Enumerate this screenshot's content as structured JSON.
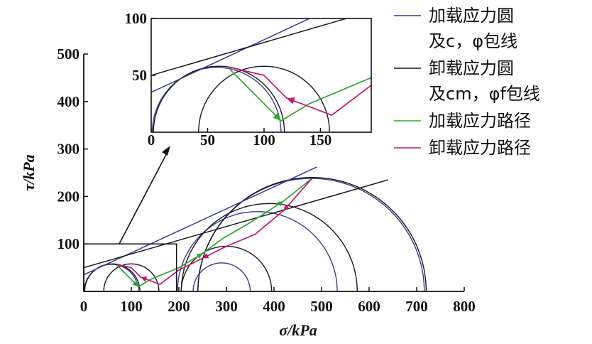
{
  "chart_data": {
    "type": "line",
    "title": "",
    "xlabel": "σ/kPa",
    "ylabel": "τ/kPa",
    "xlim": [
      0,
      800
    ],
    "ylim": [
      0,
      500
    ],
    "xticks": [
      0,
      100,
      200,
      300,
      400,
      500,
      600,
      700,
      800
    ],
    "yticks": [
      100,
      200,
      300,
      400,
      500
    ],
    "grid": false,
    "legend_position": "top-right",
    "colors": {
      "loading_circle": "#3a3a9a",
      "unloading_circle": "#1a1a1a",
      "loading_path": "#2ea82e",
      "unloading_path": "#c2186d"
    },
    "series": [
      {
        "name": "加载应力圆及c，φ包线",
        "legend": [
          "加载应力圆",
          "及c，φ包线"
        ],
        "envelope": {
          "x": [
            0,
            490
          ],
          "y": [
            35,
            262
          ]
        },
        "circles": [
          {
            "center": 58,
            "radius": 57
          },
          {
            "center": 290,
            "radius": 60
          },
          {
            "center": 365,
            "radius": 168
          },
          {
            "center": 478,
            "radius": 238
          }
        ]
      },
      {
        "name": "卸载应力圆及cm，φf包线",
        "legend": [
          "卸载应力圆",
          "及cm，φf包线"
        ],
        "envelope": {
          "x": [
            0,
            640
          ],
          "y": [
            50,
            235
          ]
        },
        "circles": [
          {
            "center": 60,
            "radius": 58
          },
          {
            "center": 100,
            "radius": 58
          },
          {
            "center": 300,
            "radius": 95
          },
          {
            "center": 390,
            "radius": 185
          },
          {
            "center": 480,
            "radius": 240
          }
        ]
      },
      {
        "name": "加载应力路径",
        "x": [
          70,
          115,
          140,
          200,
          250,
          290,
          350,
          420,
          480
        ],
        "y": [
          55,
          10,
          25,
          50,
          80,
          110,
          145,
          190,
          238
        ]
      },
      {
        "name": "卸载应力路径",
        "x": [
          480,
          420,
          360,
          300,
          250,
          200,
          160,
          120,
          100,
          70
        ],
        "y": [
          238,
          170,
          120,
          95,
          70,
          45,
          15,
          30,
          50,
          57
        ]
      }
    ],
    "inset": {
      "xlim": [
        0,
        195
      ],
      "ylim": [
        0,
        100
      ],
      "xticks": [
        0,
        50,
        100,
        150
      ],
      "yticks": [
        50,
        100
      ]
    }
  }
}
